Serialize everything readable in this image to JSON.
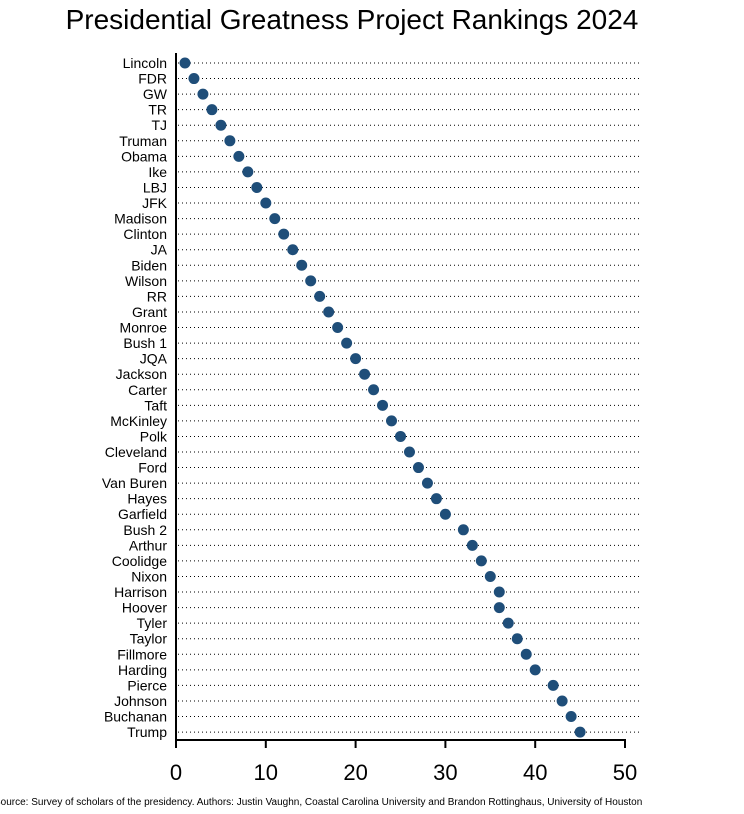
{
  "chart_data": {
    "type": "scatter",
    "title": "Presidential Greatness Project Rankings 2024",
    "source": "Source: Survey of scholars of the presidency.  Authors: Justin Vaughn, Coastal Carolina University and Brandon Rottinghaus, University of Houston",
    "categories": [
      "Lincoln",
      "FDR",
      "GW",
      "TR",
      "TJ",
      "Truman",
      "Obama",
      "Ike",
      "LBJ",
      "JFK",
      "Madison",
      "Clinton",
      "JA",
      "Biden",
      "Wilson",
      "RR",
      "Grant",
      "Monroe",
      "Bush 1",
      "JQA",
      "Jackson",
      "Carter",
      "Taft",
      "McKinley",
      "Polk",
      "Cleveland",
      "Ford",
      "Van Buren",
      "Hayes",
      "Garfield",
      "Bush 2",
      "Arthur",
      "Coolidge",
      "Nixon",
      "Harrison",
      "Hoover",
      "Tyler",
      "Taylor",
      "Fillmore",
      "Harding",
      "Pierce",
      "Johnson",
      "Buchanan",
      "Trump"
    ],
    "values": [
      1,
      2,
      3,
      4,
      5,
      6,
      7,
      8,
      9,
      10,
      11,
      12,
      13,
      14,
      15,
      16,
      17,
      18,
      19,
      20,
      21,
      22,
      23,
      24,
      25,
      26,
      27,
      28,
      29,
      30,
      32,
      33,
      34,
      35,
      36,
      36,
      37,
      38,
      39,
      40,
      42,
      43,
      44,
      45
    ],
    "xlim": [
      0,
      50
    ],
    "xticks": [
      "0",
      "10",
      "20",
      "30",
      "40",
      "50"
    ],
    "xlabel": "",
    "ylabel": "",
    "grid": "dotted horizontal",
    "marker_color": "#1f4e79"
  }
}
